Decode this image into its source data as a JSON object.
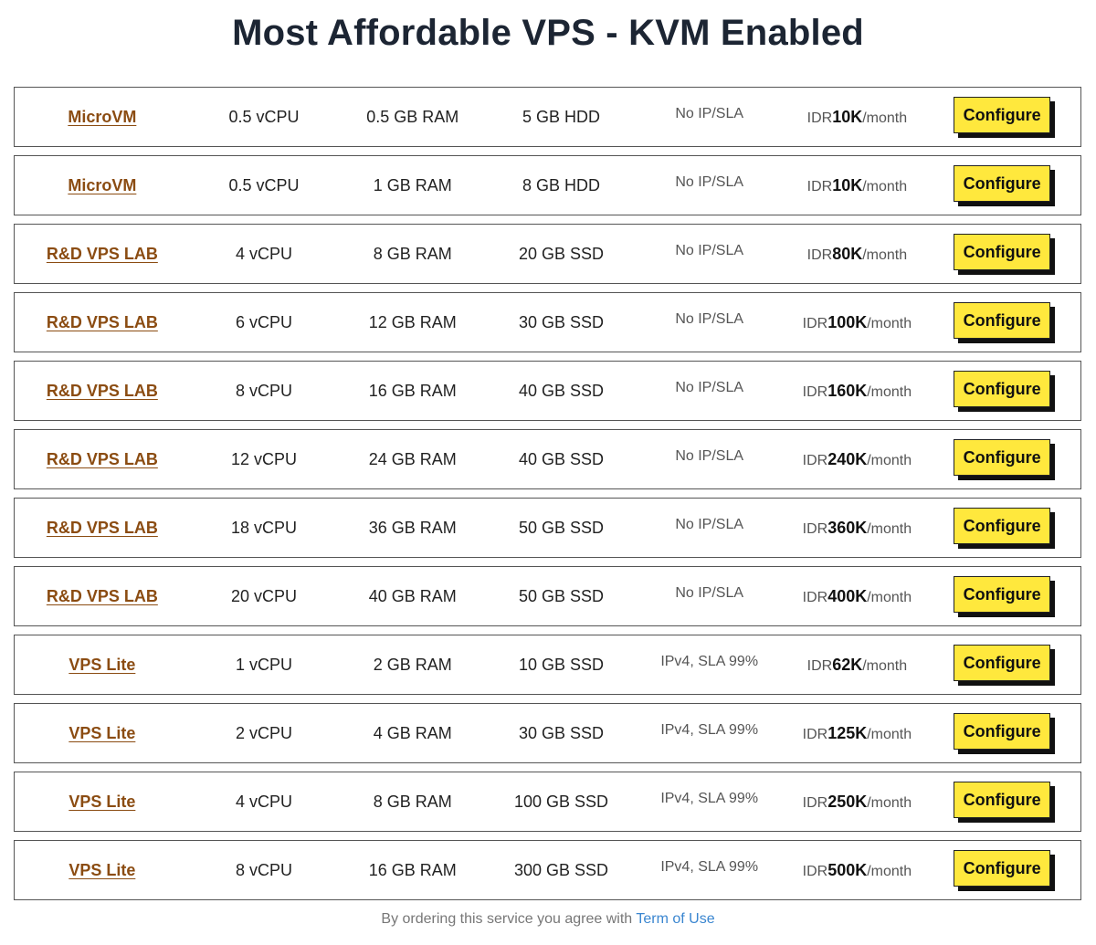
{
  "page": {
    "title": "Most Affordable VPS - KVM Enabled"
  },
  "plans": [
    {
      "name": "MicroVM",
      "cpu": "0.5 vCPU",
      "ram": "0.5 GB RAM",
      "disk": "5 GB HDD",
      "network": "No IP/SLA",
      "currency": "IDR",
      "price": "10K",
      "period": "/month",
      "action": "Configure"
    },
    {
      "name": "MicroVM",
      "cpu": "0.5 vCPU",
      "ram": "1 GB RAM",
      "disk": "8 GB HDD",
      "network": "No IP/SLA",
      "currency": "IDR",
      "price": "10K",
      "period": "/month",
      "action": "Configure"
    },
    {
      "name": "R&D VPS LAB",
      "cpu": "4 vCPU",
      "ram": "8 GB RAM",
      "disk": "20 GB SSD",
      "network": "No IP/SLA",
      "currency": "IDR",
      "price": "80K",
      "period": "/month",
      "action": "Configure"
    },
    {
      "name": "R&D VPS LAB",
      "cpu": "6 vCPU",
      "ram": "12 GB RAM",
      "disk": "30 GB SSD",
      "network": "No IP/SLA",
      "currency": "IDR",
      "price": "100K",
      "period": "/month",
      "action": "Configure"
    },
    {
      "name": "R&D VPS LAB",
      "cpu": "8 vCPU",
      "ram": "16 GB RAM",
      "disk": "40 GB SSD",
      "network": "No IP/SLA",
      "currency": "IDR",
      "price": "160K",
      "period": "/month",
      "action": "Configure"
    },
    {
      "name": "R&D VPS LAB",
      "cpu": "12 vCPU",
      "ram": "24 GB RAM",
      "disk": "40 GB SSD",
      "network": "No IP/SLA",
      "currency": "IDR",
      "price": "240K",
      "period": "/month",
      "action": "Configure"
    },
    {
      "name": "R&D VPS LAB",
      "cpu": "18 vCPU",
      "ram": "36 GB RAM",
      "disk": "50 GB SSD",
      "network": "No IP/SLA",
      "currency": "IDR",
      "price": "360K",
      "period": "/month",
      "action": "Configure"
    },
    {
      "name": "R&D VPS LAB",
      "cpu": "20 vCPU",
      "ram": "40 GB RAM",
      "disk": "50 GB SSD",
      "network": "No IP/SLA",
      "currency": "IDR",
      "price": "400K",
      "period": "/month",
      "action": "Configure"
    },
    {
      "name": "VPS Lite",
      "cpu": "1 vCPU",
      "ram": "2 GB RAM",
      "disk": "10 GB SSD",
      "network": "IPv4, SLA 99%",
      "currency": "IDR",
      "price": "62K",
      "period": "/month",
      "action": "Configure"
    },
    {
      "name": "VPS Lite",
      "cpu": "2 vCPU",
      "ram": "4 GB RAM",
      "disk": "30 GB SSD",
      "network": "IPv4, SLA 99%",
      "currency": "IDR",
      "price": "125K",
      "period": "/month",
      "action": "Configure"
    },
    {
      "name": "VPS Lite",
      "cpu": "4 vCPU",
      "ram": "8 GB RAM",
      "disk": "100 GB SSD",
      "network": "IPv4, SLA 99%",
      "currency": "IDR",
      "price": "250K",
      "period": "/month",
      "action": "Configure"
    },
    {
      "name": "VPS Lite",
      "cpu": "8 vCPU",
      "ram": "16 GB RAM",
      "disk": "300 GB SSD",
      "network": "IPv4, SLA 99%",
      "currency": "IDR",
      "price": "500K",
      "period": "/month",
      "action": "Configure"
    }
  ],
  "footer": {
    "text": "By ordering this service you agree with",
    "link_label": "Term of Use"
  },
  "colors": {
    "plan_link": "#8b4c12",
    "button_bg": "#ffe83d",
    "footer_link": "#3a86d0",
    "title": "#1c2533"
  }
}
